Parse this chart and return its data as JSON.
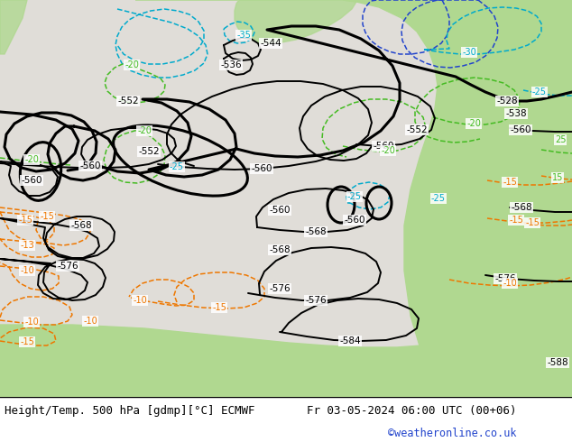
{
  "title_left": "Height/Temp. 500 hPa [gdmp][°C] ECMWF",
  "title_right": "Fr 03-05-2024 06:00 UTC (00+06)",
  "copyright": "©weatheronline.co.uk",
  "bg_land": "#d8d4cc",
  "bg_ocean": "#c8c8c8",
  "bg_green": "#b0d890",
  "bg_green2": "#98cc70",
  "contour_black": "#000000",
  "contour_cyan": "#00aacc",
  "contour_dkgreen": "#44aa22",
  "contour_orange": "#ee7700",
  "contour_blue": "#2255cc",
  "figsize": [
    6.34,
    4.9
  ],
  "dpi": 100
}
